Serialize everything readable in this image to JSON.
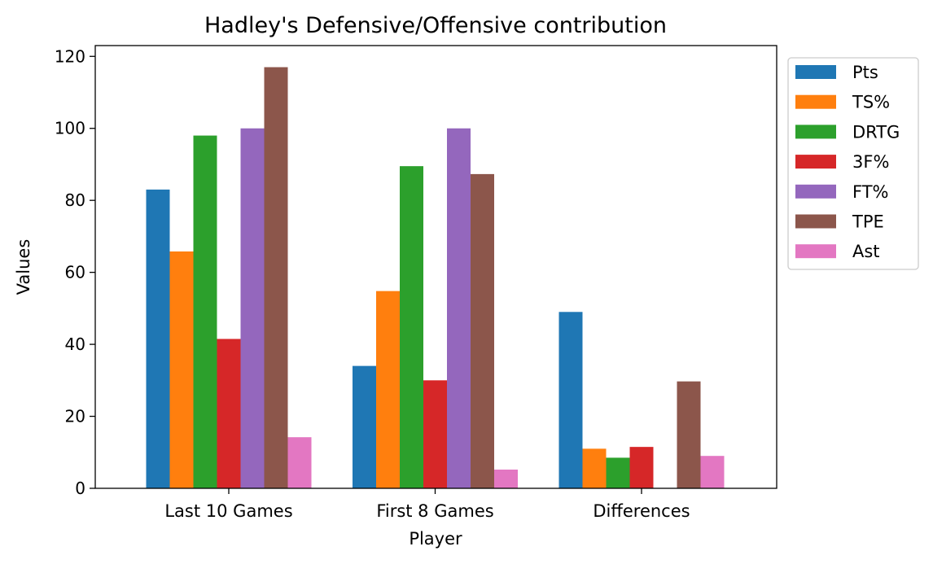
{
  "chart_data": {
    "type": "bar",
    "title": "Hadley's Defensive/Offensive contribution",
    "xlabel": "Player",
    "ylabel": "Values",
    "categories": [
      "Last 10 Games",
      "First 8 Games",
      "Differences"
    ],
    "ylim": [
      0,
      123
    ],
    "yticks": [
      0,
      20,
      40,
      60,
      80,
      100,
      120
    ],
    "grid": false,
    "legend_position": "outside-top-right",
    "series": [
      {
        "name": "Pts",
        "color": "#1f77b4",
        "values": [
          83,
          34,
          49
        ]
      },
      {
        "name": "TS%",
        "color": "#ff7f0e",
        "values": [
          65.8,
          54.8,
          11
        ]
      },
      {
        "name": "DRTG",
        "color": "#2ca02c",
        "values": [
          98,
          89.5,
          8.5
        ]
      },
      {
        "name": "3F%",
        "color": "#d62728",
        "values": [
          41.5,
          30,
          11.5
        ]
      },
      {
        "name": "FT%",
        "color": "#9467bd",
        "values": [
          100,
          100,
          0
        ]
      },
      {
        "name": "TPE",
        "color": "#8c564b",
        "values": [
          117,
          87.3,
          29.7
        ]
      },
      {
        "name": "Ast",
        "color": "#e377c2",
        "values": [
          14.2,
          5.2,
          9
        ]
      }
    ]
  }
}
